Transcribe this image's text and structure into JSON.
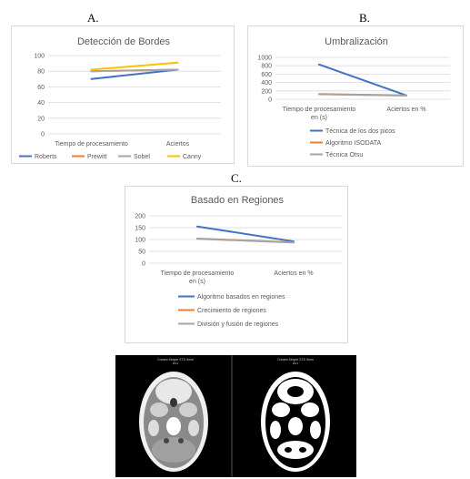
{
  "panels": {
    "a": "A.",
    "b": "B.",
    "c": "C."
  },
  "chart_data": [
    {
      "id": "A",
      "type": "line",
      "title": "Detección de Bordes",
      "categories": [
        "Tiempo de procesamiento",
        "Aciertos"
      ],
      "ylim": [
        0,
        100
      ],
      "yticks": [
        0,
        20,
        40,
        60,
        80,
        100
      ],
      "grid": true,
      "legend_position": "bottom",
      "series": [
        {
          "name": "Roberts",
          "color": "#4472c4",
          "values": [
            70,
            82
          ]
        },
        {
          "name": "Prewitt",
          "color": "#ed7d31",
          "values": [
            80,
            82
          ]
        },
        {
          "name": "Sobel",
          "color": "#a5a5a5",
          "values": [
            80,
            82
          ]
        },
        {
          "name": "Canny",
          "color": "#ffc000",
          "values": [
            82,
            91
          ]
        }
      ]
    },
    {
      "id": "B",
      "type": "line",
      "title": "Umbralización",
      "categories": [
        "Tiempo de procesamiento en (s)",
        "Aciertos en %"
      ],
      "ylim": [
        0,
        1000
      ],
      "yticks": [
        0,
        200,
        400,
        600,
        800,
        1000
      ],
      "grid": true,
      "legend_position": "bottom",
      "series": [
        {
          "name": "Técnica de los dos picos",
          "color": "#4472c4",
          "values": [
            830,
            90
          ]
        },
        {
          "name": "Algoritmo ISODATA",
          "color": "#ed7d31",
          "values": [
            125,
            92
          ]
        },
        {
          "name": "Técnica Otsu",
          "color": "#a5a5a5",
          "values": [
            120,
            88
          ]
        }
      ]
    },
    {
      "id": "C",
      "type": "line",
      "title": "Basado en Regiones",
      "categories": [
        "Tiempo de procesamiento en (s)",
        "Aciertos en %"
      ],
      "ylim": [
        0,
        200
      ],
      "yticks": [
        0,
        50,
        100,
        150,
        200
      ],
      "grid": true,
      "legend_position": "bottom",
      "series": [
        {
          "name": "Algoritmo basados en regiones",
          "color": "#4472c4",
          "values": [
            155,
            92
          ]
        },
        {
          "name": "Crecimiento de regiones",
          "color": "#ed7d31",
          "values": [
            104,
            88
          ]
        },
        {
          "name": "División y fusión de regiones",
          "color": "#a5a5a5",
          "values": [
            103,
            87
          ]
        }
      ]
    }
  ],
  "ct_images": {
    "left_caption": "Cranea Simple STD 5mm",
    "left_sub": "Ax1",
    "right_caption": "Cranea Simple STD 5mm",
    "right_sub": "Ax1"
  }
}
